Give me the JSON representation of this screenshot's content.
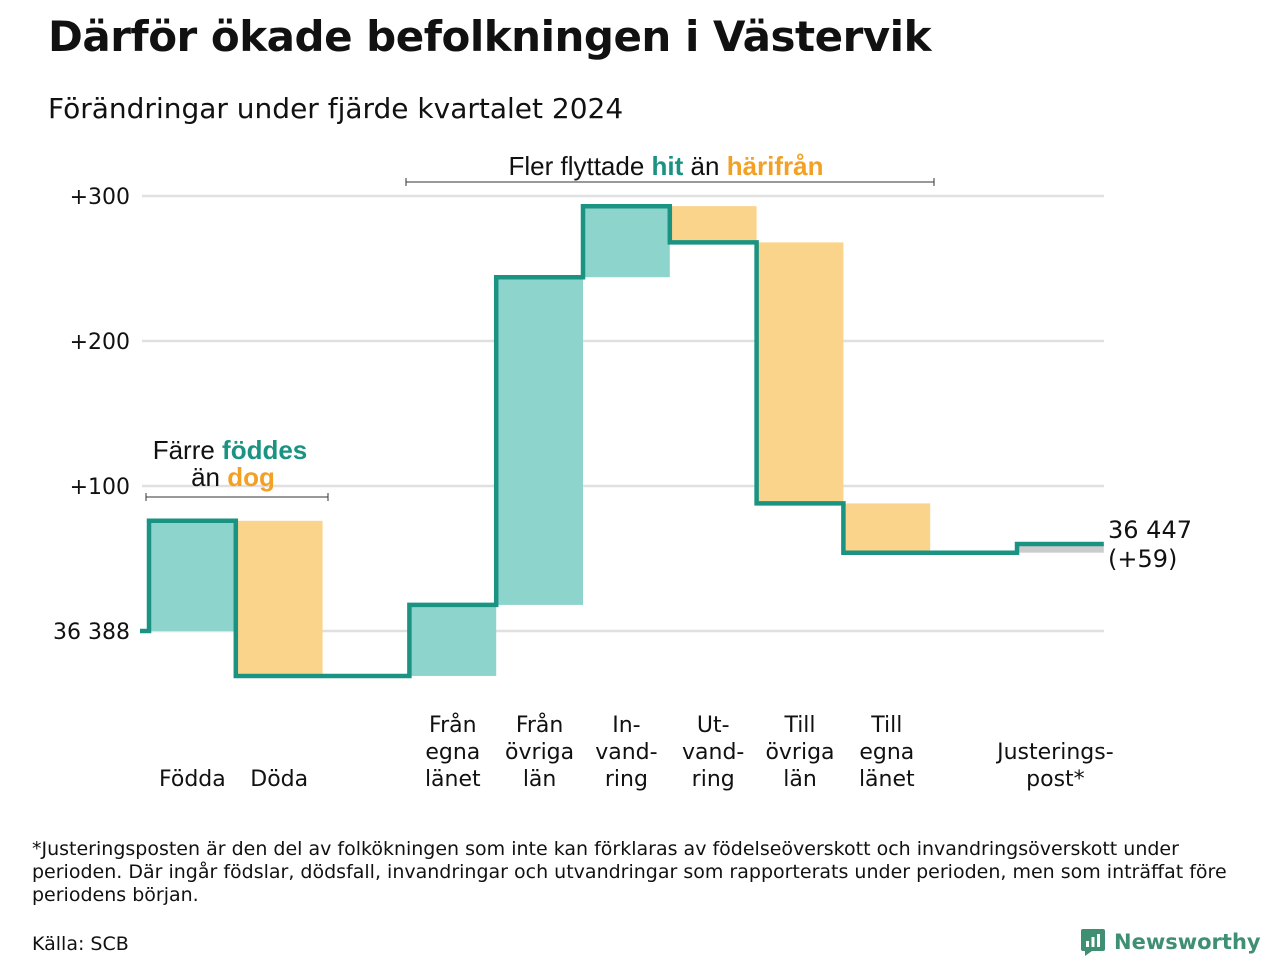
{
  "title": "Därför ökade befolkningen i Västervik",
  "subtitle": "Förändringar under fjärde kvartalet 2024",
  "footnote": "*Justeringsposten är den del av folkökningen som inte kan förklaras av födelseöverskott och invandringsöverskott under perioden. Där ingår födslar, dödsfall, invandringar och utvandringar som rapporterats under perioden, men som inträffat före periodens början.",
  "source": "Källa: SCB",
  "logo": {
    "text": "Newsworthy",
    "icon": "newsworthy-logo-icon"
  },
  "colors": {
    "in": "#8dd4cc",
    "out": "#fad48b",
    "adjust": "#cccccc",
    "line": "#1a9383",
    "accent_in": "#1a9383",
    "accent_out": "#f2a125",
    "grid": "#e0e0e0"
  },
  "chart_data": {
    "type": "waterfall",
    "start_value": 36388,
    "start_label": "36 388",
    "end_value": 36447,
    "end_label": "36 447",
    "end_change_label": "(+59)",
    "yticks": [
      {
        "value": 0,
        "label": "36 388"
      },
      {
        "value": 100,
        "label": "+100"
      },
      {
        "value": 200,
        "label": "+200"
      },
      {
        "value": 300,
        "label": "+300"
      }
    ],
    "ylim": [
      -40,
      300
    ],
    "grid": true,
    "steps": [
      {
        "label": [
          "Födda"
        ],
        "value": 76,
        "kind": "in"
      },
      {
        "label": [
          "Döda"
        ],
        "value": -107,
        "kind": "out"
      },
      {
        "label": [],
        "value": 0,
        "kind": "gap"
      },
      {
        "label": [
          "Från",
          "egna",
          "länet"
        ],
        "value": 49,
        "kind": "in"
      },
      {
        "label": [
          "Från",
          "övriga",
          "län"
        ],
        "value": 226,
        "kind": "in"
      },
      {
        "label": [
          "In-",
          "vand-",
          "ring"
        ],
        "value": 49,
        "kind": "in"
      },
      {
        "label": [
          "Ut-",
          "vand-",
          "ring"
        ],
        "value": -25,
        "kind": "out"
      },
      {
        "label": [
          "Till",
          "övriga",
          "län"
        ],
        "value": -180,
        "kind": "out"
      },
      {
        "label": [
          "Till",
          "egna",
          "länet"
        ],
        "value": -34,
        "kind": "out"
      },
      {
        "label": [],
        "value": 0,
        "kind": "gap"
      },
      {
        "label": [
          "Justerings-",
          "post*"
        ],
        "value": 6,
        "kind": "adjust"
      }
    ],
    "annotations": [
      {
        "parts": [
          {
            "text": "Färre ",
            "color": ""
          },
          {
            "text": "föddes",
            "color": "in"
          }
        ],
        "line2": [
          {
            "text": "än ",
            "color": ""
          },
          {
            "text": "dog",
            "color": "out"
          }
        ]
      },
      {
        "parts": [
          {
            "text": "Fler flyttade ",
            "color": ""
          },
          {
            "text": "hit",
            "color": "in"
          },
          {
            "text": " än ",
            "color": ""
          },
          {
            "text": "härifrån",
            "color": "out"
          }
        ]
      }
    ]
  }
}
